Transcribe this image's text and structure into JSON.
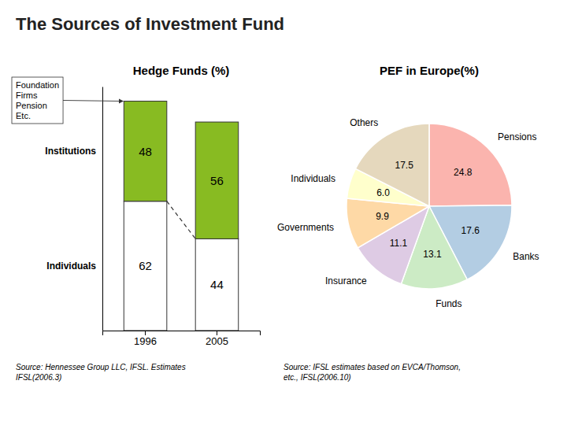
{
  "title": "The Sources of Investment Fund",
  "chart_data": [
    {
      "type": "bar",
      "title": "Hedge Funds (%)",
      "categories": [
        "1996",
        "2005"
      ],
      "series": [
        {
          "name": "Individuals",
          "color": "#ffffff",
          "values": [
            62,
            44
          ]
        },
        {
          "name": "Institutions",
          "color": "#88bb22",
          "values": [
            48,
            56
          ]
        }
      ],
      "stacked": true,
      "data_labels": true,
      "tick_labels": "x",
      "ylim": [
        0,
        117
      ],
      "annotations": [
        "Foundation\nFirms\nPension\nEtc."
      ],
      "source": "Source: Hennessee Group LLC, IFSL. Estimates\nIFSL(2006.3)"
    },
    {
      "type": "pie",
      "title": "PEF in Europe(%)",
      "categories": [
        "Pensions",
        "Banks",
        "Funds",
        "Insurance",
        "Governments",
        "Individuals",
        "Others"
      ],
      "values": [
        24.8,
        17.6,
        13.1,
        11.1,
        9.9,
        6.0,
        17.5
      ],
      "value_labels": [
        "24.8",
        "17.6",
        "13.1",
        "11.1",
        "9.9",
        "6.0",
        "17.5"
      ],
      "data_labels": true,
      "source": "Source: IFSL estimates based on EVCA/Thomson,\netc., IFSL(2006.10)"
    }
  ]
}
